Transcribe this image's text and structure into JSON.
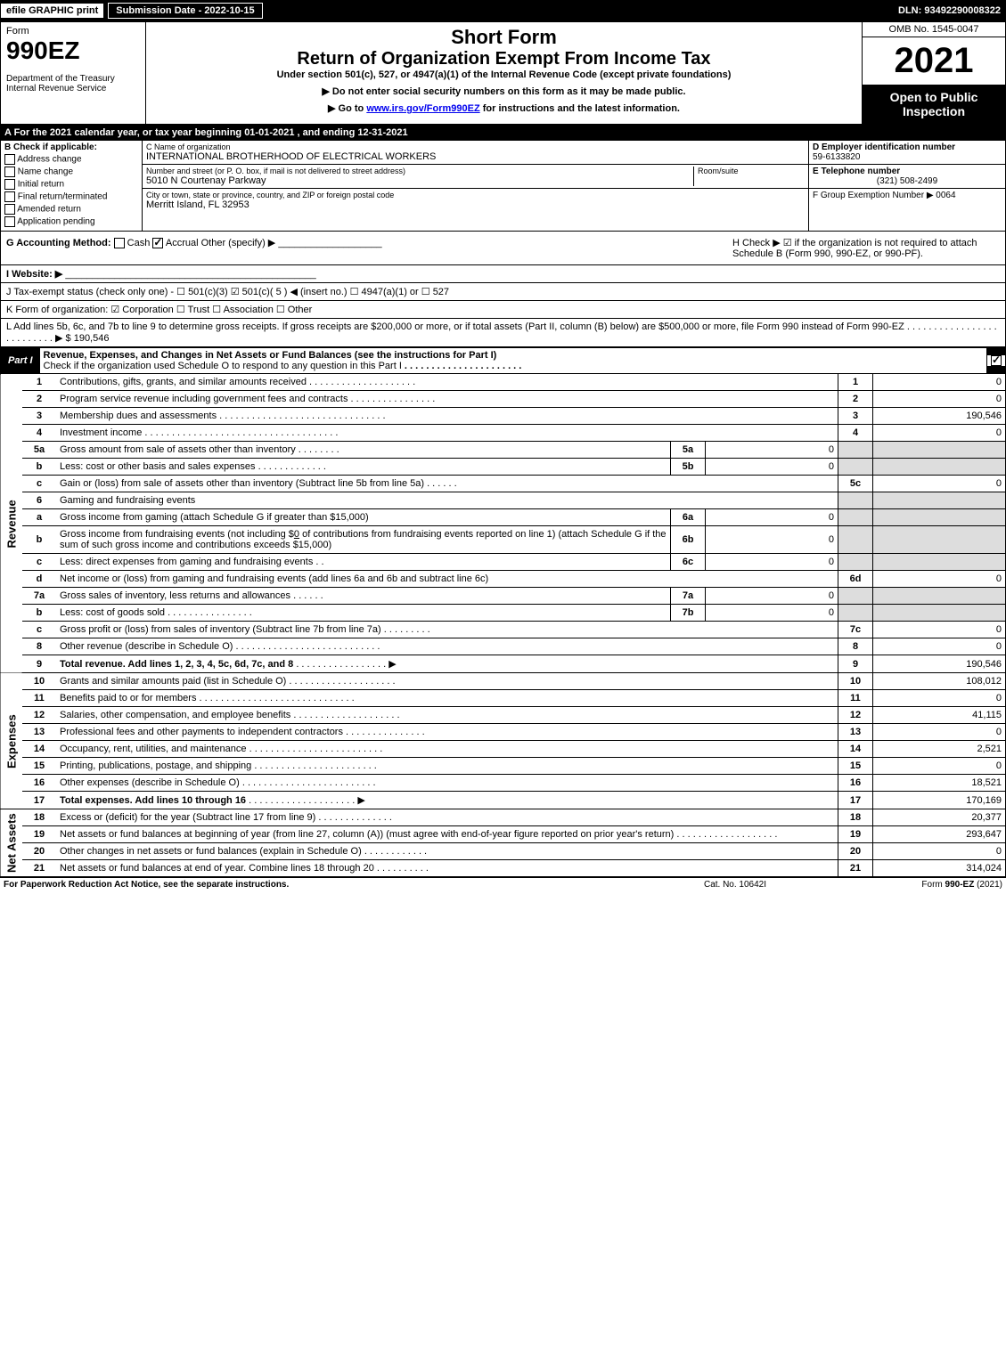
{
  "top": {
    "efile": "efile GRAPHIC print",
    "submission": "Submission Date - 2022-10-15",
    "dln": "DLN: 93492290008322"
  },
  "header": {
    "form_word": "Form",
    "form_num": "990EZ",
    "dept": "Department of the Treasury\nInternal Revenue Service",
    "short_form": "Short Form",
    "return_title": "Return of Organization Exempt From Income Tax",
    "under": "Under section 501(c), 527, or 4947(a)(1) of the Internal Revenue Code (except private foundations)",
    "donot": "▶ Do not enter social security numbers on this form as it may be made public.",
    "goto_pre": "▶ Go to ",
    "goto_link": "www.irs.gov/Form990EZ",
    "goto_post": " for instructions and the latest information.",
    "omb": "OMB No. 1545-0047",
    "year": "2021",
    "open": "Open to Public Inspection"
  },
  "row_a": "A  For the 2021 calendar year, or tax year beginning 01-01-2021 , and ending 12-31-2021",
  "b": {
    "hdr": "B  Check if applicable:",
    "items": [
      "Address change",
      "Name change",
      "Initial return",
      "Final return/terminated",
      "Amended return",
      "Application pending"
    ]
  },
  "c": {
    "name_label": "C Name of organization",
    "name": "INTERNATIONAL BROTHERHOOD OF ELECTRICAL WORKERS",
    "addr_label": "Number and street (or P. O. box, if mail is not delivered to street address)",
    "addr": "5010 N Courtenay Parkway",
    "room_label": "Room/suite",
    "city_label": "City or town, state or province, country, and ZIP or foreign postal code",
    "city": "Merritt Island, FL  32953"
  },
  "d": {
    "ein_label": "D Employer identification number",
    "ein": "59-6133820",
    "phone_label": "E Telephone number",
    "phone": "(321) 508-2499",
    "group_label": "F Group Exemption Number  ▶ 0064"
  },
  "g": {
    "label": "G Accounting Method:",
    "cash": "Cash",
    "accrual": "Accrual",
    "other": "Other (specify) ▶"
  },
  "h": "H  Check ▶ ☑ if the organization is not required to attach Schedule B (Form 990, 990-EZ, or 990-PF).",
  "i": "I Website: ▶",
  "j": "J Tax-exempt status (check only one) - ☐ 501(c)(3) ☑ 501(c)( 5 ) ◀ (insert no.) ☐ 4947(a)(1) or ☐ 527",
  "k": "K Form of organization: ☑ Corporation  ☐ Trust  ☐ Association  ☐ Other",
  "l": {
    "text": "L Add lines 5b, 6c, and 7b to line 9 to determine gross receipts. If gross receipts are $200,000 or more, or if total assets (Part II, column (B) below) are $500,000 or more, file Form 990 instead of Form 990-EZ",
    "amount": "▶ $ 190,546"
  },
  "part1": {
    "label": "Part I",
    "title": "Revenue, Expenses, and Changes in Net Assets or Fund Balances (see the instructions for Part I)",
    "subtitle": "Check if the organization used Schedule O to respond to any question in this Part I"
  },
  "sections": {
    "revenue": "Revenue",
    "expenses": "Expenses",
    "netassets": "Net Assets"
  },
  "lines": {
    "1": {
      "desc": "Contributions, gifts, grants, and similar amounts received",
      "ref": "1",
      "val": "0"
    },
    "2": {
      "desc": "Program service revenue including government fees and contracts",
      "ref": "2",
      "val": "0"
    },
    "3": {
      "desc": "Membership dues and assessments",
      "ref": "3",
      "val": "190,546"
    },
    "4": {
      "desc": "Investment income",
      "ref": "4",
      "val": "0"
    },
    "5a": {
      "desc": "Gross amount from sale of assets other than inventory",
      "sub": "5a",
      "subval": "0"
    },
    "5b": {
      "desc": "Less: cost or other basis and sales expenses",
      "sub": "5b",
      "subval": "0"
    },
    "5c": {
      "desc": "Gain or (loss) from sale of assets other than inventory (Subtract line 5b from line 5a)",
      "ref": "5c",
      "val": "0"
    },
    "6": {
      "desc": "Gaming and fundraising events"
    },
    "6a": {
      "desc": "Gross income from gaming (attach Schedule G if greater than $15,000)",
      "sub": "6a",
      "subval": "0"
    },
    "6b": {
      "desc_pre": "Gross income from fundraising events (not including $",
      "desc_mid": "0",
      "desc_post": " of contributions from fundraising events reported on line 1) (attach Schedule G if the sum of such gross income and contributions exceeds $15,000)",
      "sub": "6b",
      "subval": "0"
    },
    "6c": {
      "desc": "Less: direct expenses from gaming and fundraising events",
      "sub": "6c",
      "subval": "0"
    },
    "6d": {
      "desc": "Net income or (loss) from gaming and fundraising events (add lines 6a and 6b and subtract line 6c)",
      "ref": "6d",
      "val": "0"
    },
    "7a": {
      "desc": "Gross sales of inventory, less returns and allowances",
      "sub": "7a",
      "subval": "0"
    },
    "7b": {
      "desc": "Less: cost of goods sold",
      "sub": "7b",
      "subval": "0"
    },
    "7c": {
      "desc": "Gross profit or (loss) from sales of inventory (Subtract line 7b from line 7a)",
      "ref": "7c",
      "val": "0"
    },
    "8": {
      "desc": "Other revenue (describe in Schedule O)",
      "ref": "8",
      "val": "0"
    },
    "9": {
      "desc": "Total revenue. Add lines 1, 2, 3, 4, 5c, 6d, 7c, and 8",
      "ref": "9",
      "val": "190,546"
    },
    "10": {
      "desc": "Grants and similar amounts paid (list in Schedule O)",
      "ref": "10",
      "val": "108,012"
    },
    "11": {
      "desc": "Benefits paid to or for members",
      "ref": "11",
      "val": "0"
    },
    "12": {
      "desc": "Salaries, other compensation, and employee benefits",
      "ref": "12",
      "val": "41,115"
    },
    "13": {
      "desc": "Professional fees and other payments to independent contractors",
      "ref": "13",
      "val": "0"
    },
    "14": {
      "desc": "Occupancy, rent, utilities, and maintenance",
      "ref": "14",
      "val": "2,521"
    },
    "15": {
      "desc": "Printing, publications, postage, and shipping",
      "ref": "15",
      "val": "0"
    },
    "16": {
      "desc": "Other expenses (describe in Schedule O)",
      "ref": "16",
      "val": "18,521"
    },
    "17": {
      "desc": "Total expenses. Add lines 10 through 16",
      "ref": "17",
      "val": "170,169"
    },
    "18": {
      "desc": "Excess or (deficit) for the year (Subtract line 17 from line 9)",
      "ref": "18",
      "val": "20,377"
    },
    "19": {
      "desc": "Net assets or fund balances at beginning of year (from line 27, column (A)) (must agree with end-of-year figure reported on prior year's return)",
      "ref": "19",
      "val": "293,647"
    },
    "20": {
      "desc": "Other changes in net assets or fund balances (explain in Schedule O)",
      "ref": "20",
      "val": "0"
    },
    "21": {
      "desc": "Net assets or fund balances at end of year. Combine lines 18 through 20",
      "ref": "21",
      "val": "314,024"
    }
  },
  "footer": {
    "left": "For Paperwork Reduction Act Notice, see the separate instructions.",
    "center": "Cat. No. 10642I",
    "right_pre": "Form ",
    "right_bold": "990-EZ",
    "right_post": " (2021)"
  }
}
